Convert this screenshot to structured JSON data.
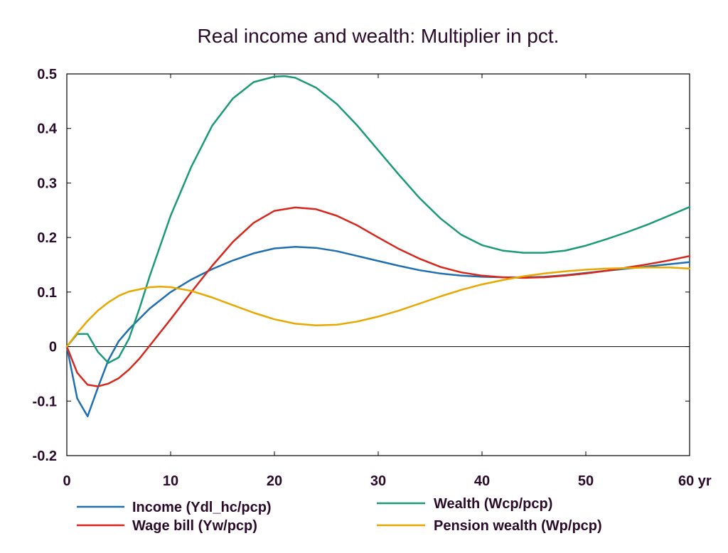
{
  "chart_data": {
    "type": "line",
    "title": "Real income and wealth: Multiplier in pct.",
    "xlabel": "",
    "ylabel": "",
    "xlim": [
      0,
      60
    ],
    "ylim": [
      -0.2,
      0.5
    ],
    "x_ticks": [
      0,
      10,
      20,
      30,
      40,
      50,
      60
    ],
    "x_tick_labels": [
      "0",
      "10",
      "20",
      "30",
      "40",
      "50",
      "60 yr"
    ],
    "y_ticks": [
      -0.2,
      -0.1,
      0,
      0.1,
      0.2,
      0.3,
      0.4,
      0.5
    ],
    "y_tick_labels": [
      "-0.2",
      "-0.1",
      "0",
      "0.1",
      "0.2",
      "0.3",
      "0.4",
      "0.5"
    ],
    "grid": false,
    "zero_line": true,
    "legend_position": "bottom",
    "series": [
      {
        "name": "Income (Ydl_hc/pcp)",
        "color": "#1f6fb0",
        "x": [
          0,
          1,
          2,
          3,
          4,
          5,
          6,
          8,
          10,
          12,
          14,
          16,
          18,
          20,
          22,
          24,
          26,
          28,
          30,
          32,
          34,
          36,
          38,
          40,
          42,
          44,
          46,
          48,
          50,
          52,
          54,
          56,
          58,
          60
        ],
        "y": [
          0,
          -0.095,
          -0.128,
          -0.075,
          -0.025,
          0.01,
          0.032,
          0.07,
          0.1,
          0.123,
          0.142,
          0.158,
          0.171,
          0.18,
          0.183,
          0.181,
          0.175,
          0.166,
          0.157,
          0.148,
          0.14,
          0.134,
          0.13,
          0.128,
          0.127,
          0.127,
          0.128,
          0.131,
          0.135,
          0.139,
          0.143,
          0.147,
          0.151,
          0.155
        ]
      },
      {
        "name": "Wage bill (Yw/pcp)",
        "color": "#d9261c",
        "x": [
          0,
          1,
          2,
          3,
          4,
          5,
          6,
          7,
          8,
          10,
          12,
          14,
          16,
          18,
          20,
          22,
          24,
          26,
          28,
          30,
          32,
          34,
          36,
          38,
          40,
          42,
          44,
          46,
          48,
          50,
          52,
          54,
          56,
          58,
          60
        ],
        "y": [
          0,
          -0.048,
          -0.07,
          -0.073,
          -0.068,
          -0.058,
          -0.042,
          -0.022,
          0.002,
          0.05,
          0.1,
          0.148,
          0.192,
          0.227,
          0.249,
          0.255,
          0.252,
          0.24,
          0.222,
          0.2,
          0.179,
          0.161,
          0.146,
          0.136,
          0.13,
          0.127,
          0.126,
          0.127,
          0.13,
          0.134,
          0.139,
          0.145,
          0.151,
          0.158,
          0.166
        ]
      },
      {
        "name": "Wealth (Wcp/pcp)",
        "color": "#1a9a78",
        "x": [
          0,
          1,
          2,
          3,
          4,
          5,
          6,
          7,
          8,
          10,
          12,
          14,
          16,
          18,
          20,
          21,
          22,
          24,
          26,
          28,
          30,
          32,
          34,
          36,
          38,
          40,
          42,
          44,
          46,
          48,
          50,
          52,
          54,
          56,
          58,
          60
        ],
        "y": [
          0,
          0.023,
          0.023,
          -0.01,
          -0.03,
          -0.02,
          0.015,
          0.07,
          0.13,
          0.24,
          0.33,
          0.405,
          0.455,
          0.485,
          0.495,
          0.496,
          0.493,
          0.475,
          0.445,
          0.405,
          0.36,
          0.315,
          0.272,
          0.235,
          0.205,
          0.186,
          0.176,
          0.172,
          0.172,
          0.176,
          0.185,
          0.197,
          0.21,
          0.224,
          0.24,
          0.256
        ]
      },
      {
        "name": "Pension wealth (Wp/pcp)",
        "color": "#e8a800",
        "x": [
          0,
          1,
          2,
          3,
          4,
          5,
          6,
          8,
          9,
          10,
          12,
          14,
          16,
          18,
          20,
          22,
          24,
          26,
          28,
          30,
          32,
          34,
          36,
          38,
          40,
          42,
          44,
          46,
          48,
          50,
          52,
          54,
          56,
          58,
          60
        ],
        "y": [
          0,
          0.025,
          0.047,
          0.066,
          0.081,
          0.093,
          0.101,
          0.109,
          0.11,
          0.109,
          0.102,
          0.09,
          0.076,
          0.062,
          0.05,
          0.042,
          0.039,
          0.04,
          0.046,
          0.055,
          0.066,
          0.079,
          0.092,
          0.104,
          0.114,
          0.122,
          0.129,
          0.134,
          0.138,
          0.141,
          0.143,
          0.144,
          0.145,
          0.145,
          0.143
        ]
      }
    ]
  }
}
